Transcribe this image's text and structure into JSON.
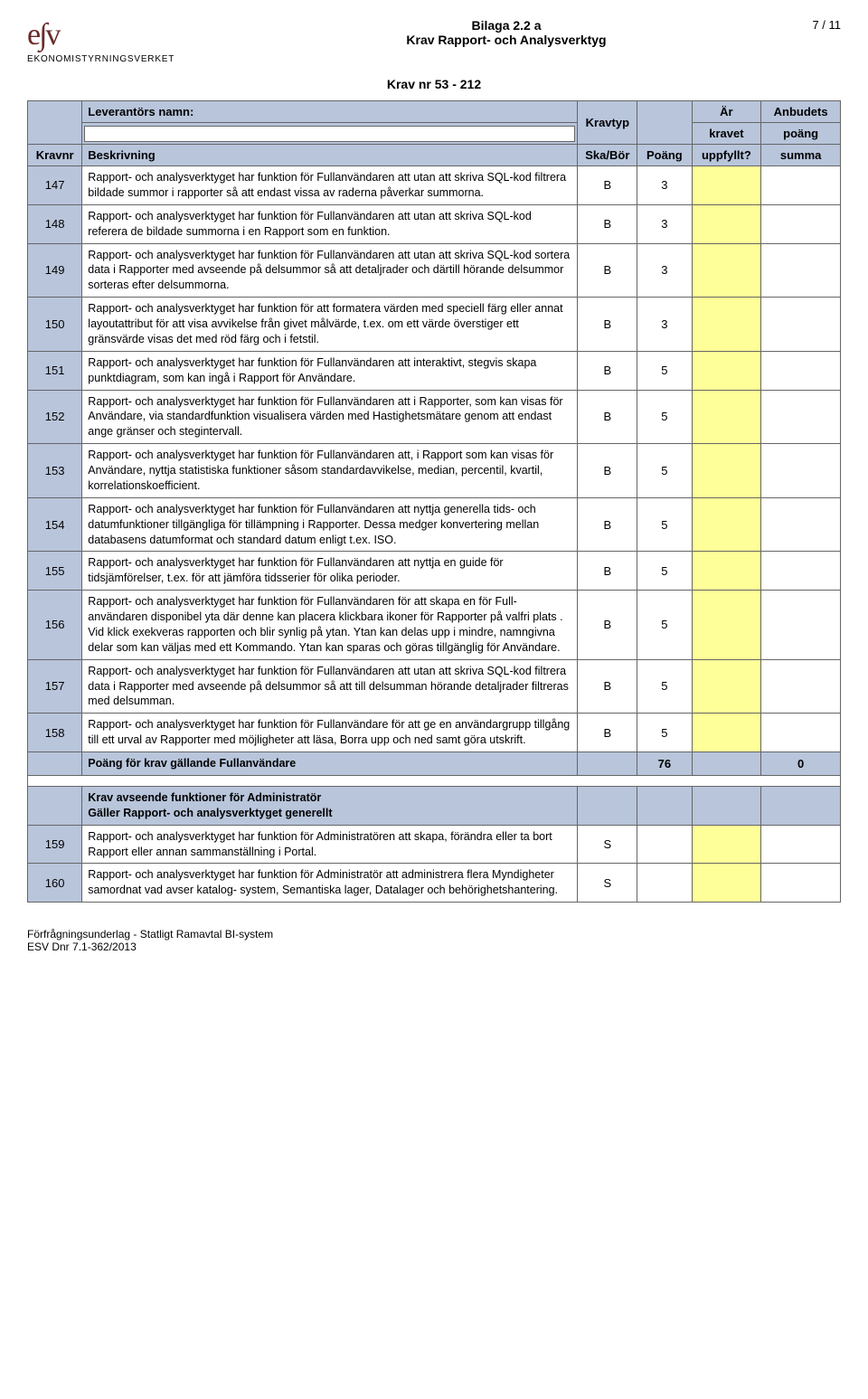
{
  "header": {
    "logo_text": "e∫v",
    "logo_subtitle": "EKONOMISTYRNINGSVERKET",
    "title_line1": "Bilaga 2.2 a",
    "title_line2": "Krav Rapport- och Analysverktyg",
    "page_indicator": "7 / 11",
    "krav_range": "Krav nr 53 - 212"
  },
  "table_header": {
    "leverantors_namn": "Leverantörs namn:",
    "kravtyp": "Kravtyp",
    "ar": "Är",
    "kravet": "kravet",
    "anbudets": "Anbudets",
    "poang_hdr": "poäng",
    "kravnr": "Kravnr",
    "beskrivning": "Beskrivning",
    "ska_bor": "Ska/Bör",
    "poang": "Poäng",
    "uppfyllt": "uppfyllt?",
    "summa": "summa"
  },
  "rows": [
    {
      "nr": "147",
      "besk": "Rapport- och analysverktyget har funktion för Fullanvändaren att utan att skriva SQL-kod filtrera bildade summor i rapporter så att endast vissa av raderna påverkar summorna.",
      "typ": "B",
      "poang": "3"
    },
    {
      "nr": "148",
      "besk": "Rapport- och analysverktyget har funktion för Fullanvändaren att utan att skriva SQL-kod referera de bildade summorna i en Rapport som en funktion.",
      "typ": "B",
      "poang": "3"
    },
    {
      "nr": "149",
      "besk": "Rapport- och analysverktyget har funktion för Fullanvändaren att utan att skriva SQL-kod sortera data i Rapporter med avseende på delsummor så att detaljrader och därtill hörande delsummor sorteras efter delsummorna.",
      "typ": "B",
      "poang": "3"
    },
    {
      "nr": "150",
      "besk": "Rapport- och analysverktyget har funktion för att formatera värden med speciell färg eller annat layoutattribut för att visa avvikelse från givet målvärde, t.ex. om ett värde överstiger ett gränsvärde visas det med röd färg och i fetstil.",
      "typ": "B",
      "poang": "3"
    },
    {
      "nr": "151",
      "besk": "Rapport- och analysverktyget har funktion för Fullanvändaren att interaktivt, stegvis skapa punktdiagram, som kan ingå i Rapport för Användare.",
      "typ": "B",
      "poang": "5"
    },
    {
      "nr": "152",
      "besk": "Rapport- och analysverktyget har funktion för Fullanvändaren att i Rapporter, som kan visas för Användare, via standardfunktion visualisera värden med Hastighetsmätare genom att endast ange gränser och stegintervall.",
      "typ": "B",
      "poang": "5"
    },
    {
      "nr": "153",
      "besk": "Rapport- och analysverktyget har funktion för Fullanvändaren att, i Rapport som kan visas för Användare, nyttja statistiska funktioner såsom standardavvikelse, median, percentil, kvartil, korrelationskoefficient.",
      "typ": "B",
      "poang": "5"
    },
    {
      "nr": "154",
      "besk": "Rapport- och analysverktyget har funktion för Fullanvändaren att nyttja generella tids- och datumfunktioner tillgängliga för tillämpning i Rapporter. Dessa medger konvertering mellan databasens datumformat och standard datum enligt t.ex. ISO.",
      "typ": "B",
      "poang": "5"
    },
    {
      "nr": "155",
      "besk": "Rapport- och analysverktyget har funktion för Fullanvändaren att nyttja en guide för tidsjämförelser, t.ex. för att jämföra tidsserier för olika perioder.",
      "typ": "B",
      "poang": "5"
    },
    {
      "nr": "156",
      "besk": "Rapport- och analysverktyget har funktion för Fullanvändaren för  att skapa en för Full-användaren disponibel yta där denne kan placera klickbara ikoner för Rapporter på valfri plats . Vid klick exekveras rapporten och blir synlig på ytan. Ytan kan delas upp i mindre, namngivna delar som kan väljas med ett Kommando. Ytan kan sparas och göras tillgänglig för Användare.",
      "typ": "B",
      "poang": "5"
    },
    {
      "nr": "157",
      "besk": "Rapport- och analysverktyget har funktion för Fullanvändaren att utan att skriva SQL-kod filtrera data i Rapporter med avseende på delsummor så att till delsumman hörande detaljrader filtreras med delsumman.",
      "typ": "B",
      "poang": "5"
    },
    {
      "nr": "158",
      "besk": "Rapport- och analysverktyget har funktion för Fullanvändare för att ge en användargrupp tillgång till ett urval av Rapporter med möjligheter att läsa, Borra upp och ned samt göra utskrift.",
      "typ": "B",
      "poang": "5"
    }
  ],
  "sum_row": {
    "label": "Poäng för krav gällande Fullanvändare",
    "poang_total": "76",
    "summa_total": "0"
  },
  "section": {
    "line1": "Krav avseende funktioner för Administratör",
    "line2": " Gäller Rapport- och analysverktyget generellt"
  },
  "rows2": [
    {
      "nr": "159",
      "besk": "Rapport- och analysverktyget har funktion för Administratören att skapa, förändra eller ta bort Rapport eller annan sammanställning i Portal.",
      "typ": "S",
      "poang": ""
    },
    {
      "nr": "160",
      "besk": "Rapport- och analysverktyget har funktion för Administratör att administrera flera Myndigheter samordnat vad avser katalog- system, Semantiska lager, Datalager och behörighetshantering.",
      "typ": "S",
      "poang": ""
    }
  ],
  "footer": {
    "line1": "Förfrågningsunderlag - Statligt Ramavtal BI-system",
    "line2": "ESV Dnr 7.1-362/2013"
  }
}
